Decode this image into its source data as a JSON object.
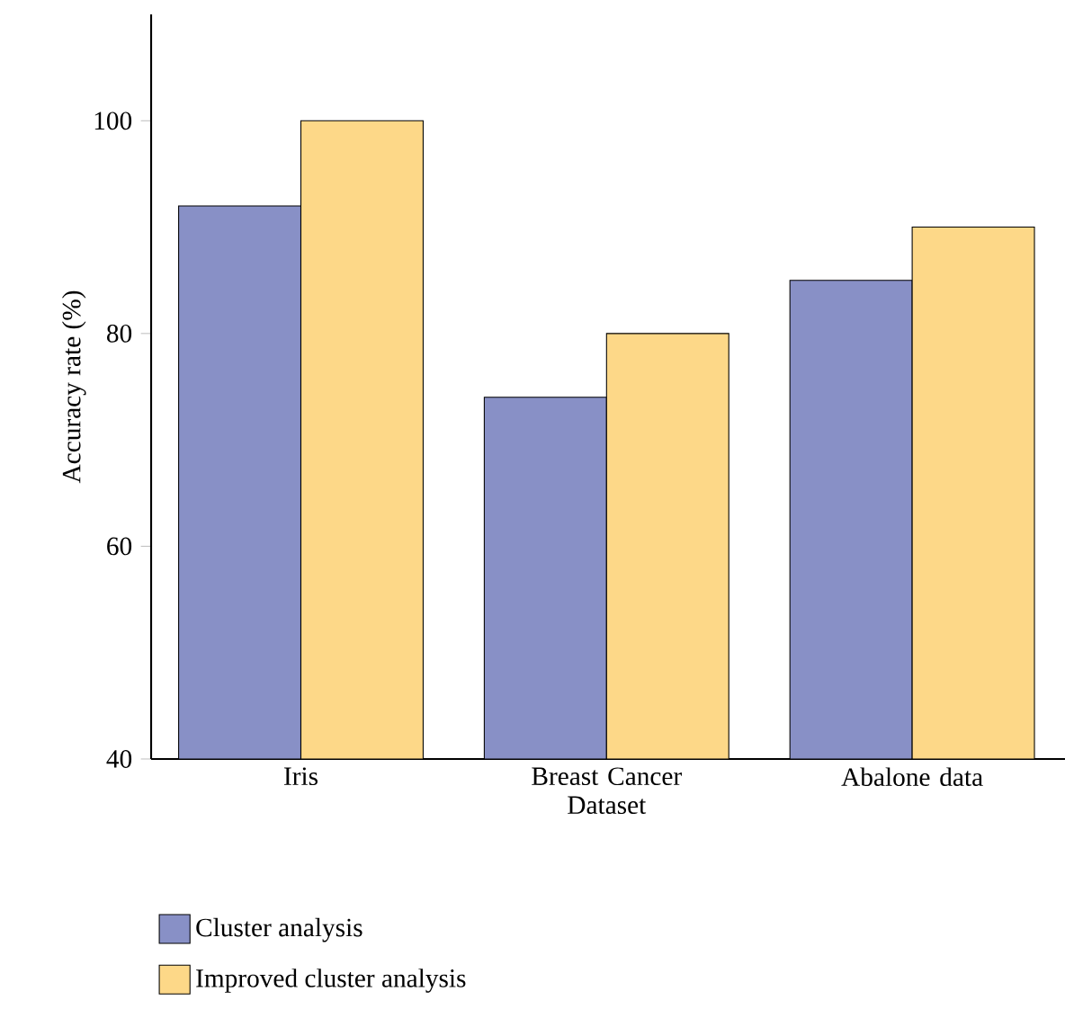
{
  "chart_data": {
    "type": "bar",
    "ylabel": "Accuracy rate (%)",
    "categories": [
      "Iris",
      "Breast Cancer Dataset",
      "Abalone data"
    ],
    "series": [
      {
        "name": "Cluster analysis",
        "color": "#8890c6",
        "values": [
          92,
          74,
          85
        ]
      },
      {
        "name": "Improved cluster analysis",
        "color": "#fdd888",
        "values": [
          100,
          80,
          90
        ]
      }
    ],
    "ylim": [
      40,
      110
    ],
    "yticks": [
      40,
      60,
      80,
      100
    ],
    "legend": "bottom",
    "grid": false
  }
}
